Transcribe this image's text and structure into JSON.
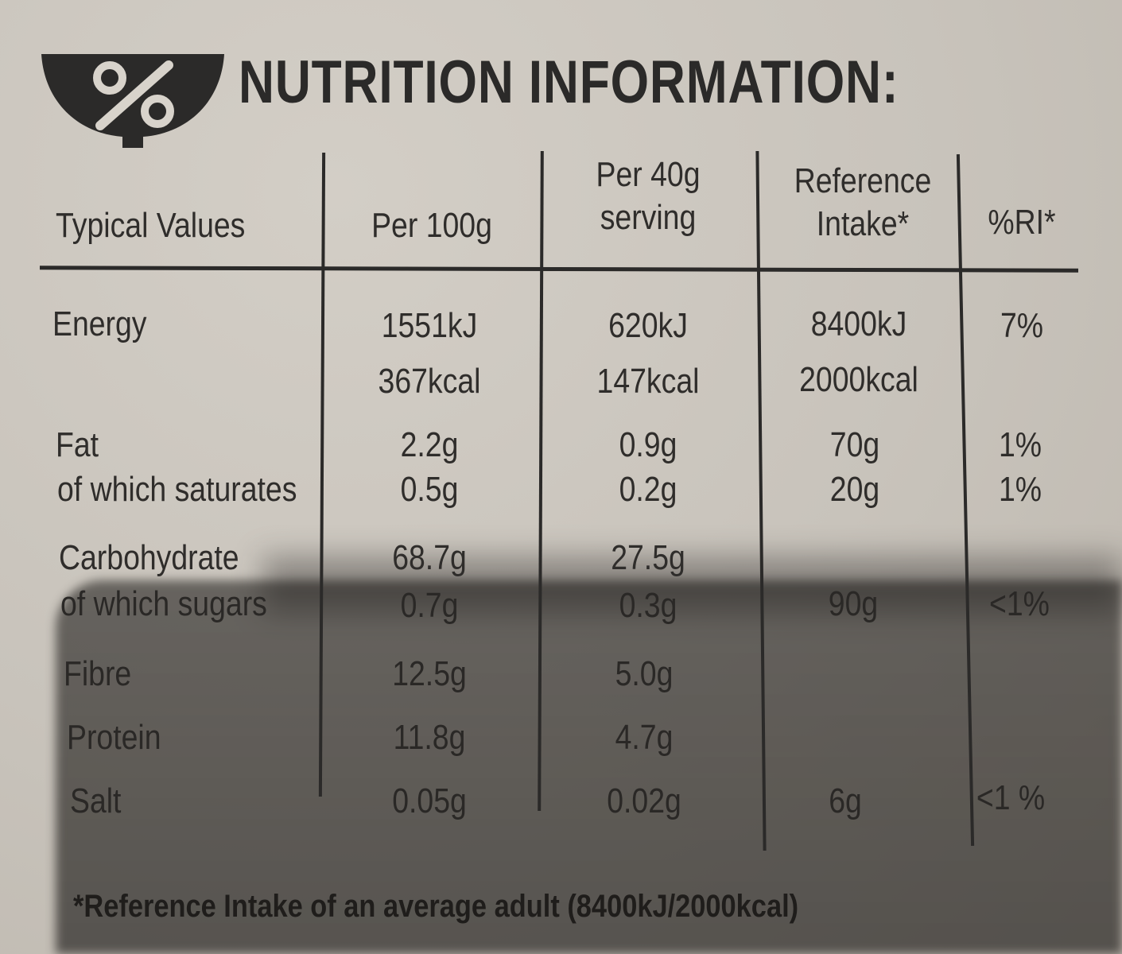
{
  "header": {
    "logo_icon": "percent-bowl-icon",
    "title": "NUTRITION INFORMATION:"
  },
  "columns": {
    "typical": "Typical Values",
    "per100": "Per 100g",
    "per40_line1": "Per 40g",
    "per40_line2": "serving",
    "ref_line1": "Reference",
    "ref_line2": "Intake*",
    "ri": "%RI*"
  },
  "rows": {
    "energy": {
      "label": "Energy",
      "per100_kj": "1551kJ",
      "per100_kcal": "367kcal",
      "per40_kj": "620kJ",
      "per40_kcal": "147kcal",
      "ref_kj": "8400kJ",
      "ref_kcal": "2000kcal",
      "ri": "7%"
    },
    "fat": {
      "label": "Fat",
      "per100": "2.2g",
      "per40": "0.9g",
      "ref": "70g",
      "ri": "1%"
    },
    "saturates": {
      "label": "of which saturates",
      "per100": "0.5g",
      "per40": "0.2g",
      "ref": "20g",
      "ri": "1%"
    },
    "carbohydrate": {
      "label": "Carbohydrate",
      "per100": "68.7g",
      "per40": "27.5g"
    },
    "sugars": {
      "label": "of which sugars",
      "per100": "0.7g",
      "per40": "0.3g",
      "ref": "90g",
      "ri": "<1%"
    },
    "fibre": {
      "label": "Fibre",
      "per100": "12.5g",
      "per40": "5.0g"
    },
    "protein": {
      "label": "Protein",
      "per100": "11.8g",
      "per40": "4.7g"
    },
    "salt": {
      "label": "Salt",
      "per100": "0.05g",
      "per40": "0.02g",
      "ref": "6g",
      "ri": "<1 %"
    }
  },
  "footnote": "*Reference Intake of an average adult (8400kJ/2000kcal)"
}
